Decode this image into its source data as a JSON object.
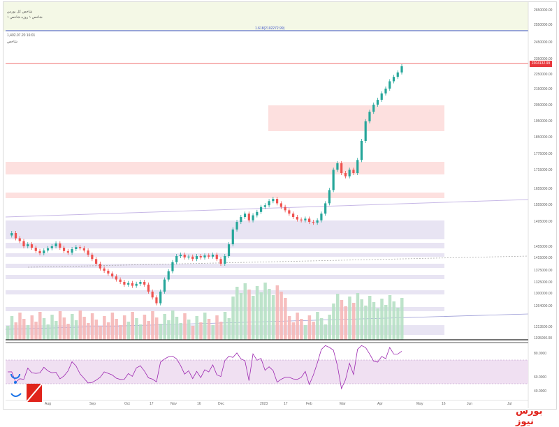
{
  "header": {
    "line1": "شاخص کل بورس",
    "line2": "شاخص ۱ روزه شاخص ۱",
    "line3": "1,402.07.20 16:01",
    "line4": "شاخص"
  },
  "fib_label": "1.618(2102272.99)",
  "current_price": "2304132.99",
  "colors": {
    "up": "#26a69a",
    "down": "#ef5350",
    "zone_red": "#fde0df",
    "zone_purple": "#e8e4f3",
    "rsi_band": "#f0e0f2",
    "rsi_line": "#9c27b0",
    "watermark": "#e0231b"
  },
  "watermark": "بورس نیوز",
  "chart_data": {
    "type": "candlestick",
    "y_ticks": [
      "2650000.00",
      "2550000.00",
      "2450000.00",
      "2350000.00",
      "2250000.00",
      "2150000.00",
      "2050000.00",
      "1950000.00",
      "1850000.00",
      "1775000.00",
      "1715000.00",
      "1655000.00",
      "1555000.00",
      "1495000.00",
      "1455000.00",
      "1415000.00",
      "1375000.00",
      "1325000.00",
      "1300000.00",
      "1264000.00",
      "1213500.00",
      "1195000.00"
    ],
    "rsi_ticks": [
      "80.0000",
      "60.0000",
      "40.0000"
    ],
    "x_ticks": [
      "Aug",
      "Sep",
      "Oct",
      "17",
      "Nov",
      "16",
      "Dec",
      "2023",
      "17",
      "Feb",
      "Mar",
      "Apr",
      "May",
      "16",
      "Jun",
      "Jul"
    ],
    "close": [
      1482000,
      1488000,
      1475000,
      1468000,
      1455000,
      1460000,
      1450000,
      1438000,
      1430000,
      1440000,
      1448000,
      1455000,
      1462000,
      1450000,
      1438000,
      1432000,
      1445000,
      1452000,
      1448000,
      1440000,
      1425000,
      1410000,
      1395000,
      1380000,
      1372000,
      1360000,
      1348000,
      1335000,
      1325000,
      1318000,
      1322000,
      1315000,
      1320000,
      1325000,
      1318000,
      1300000,
      1285000,
      1270000,
      1300000,
      1335000,
      1370000,
      1400000,
      1420000,
      1425000,
      1415000,
      1418000,
      1410000,
      1420000,
      1415000,
      1422000,
      1418000,
      1425000,
      1410000,
      1395000,
      1420000,
      1460000,
      1500000,
      1550000,
      1580000,
      1600000,
      1560000,
      1590000,
      1610000,
      1640000,
      1650000,
      1670000,
      1680000,
      1660000,
      1640000,
      1620000,
      1600000,
      1580000,
      1565000,
      1560000,
      1570000,
      1550000,
      1545000,
      1560000,
      1600000,
      1660000,
      1720000,
      1800000,
      1820000,
      1790000,
      1780000,
      1800000,
      1790000,
      1830000,
      1900000,
      1980000,
      2020000,
      2050000,
      2080000,
      2120000,
      2150000,
      2200000,
      2230000,
      2260000,
      2300000
    ]
  }
}
